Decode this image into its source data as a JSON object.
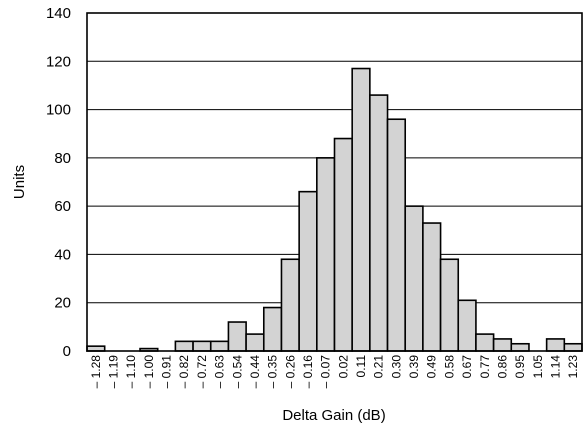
{
  "chart_data": {
    "type": "bar",
    "title": "",
    "xlabel": "Delta Gain (dB)",
    "ylabel": "Units",
    "ylim": [
      0,
      140
    ],
    "yticks": [
      "0",
      "20",
      "40",
      "60",
      "80",
      "100",
      "120",
      "140"
    ],
    "grid": "horizontal",
    "categories": [
      "-1.28",
      "-1.19",
      "-1.10",
      "-1.00",
      "-0.91",
      "-0.82",
      "-0.72",
      "-0.63",
      "-0.54",
      "-0.44",
      "-0.35",
      "-0.26",
      "-0.16",
      "-0.07",
      "0.02",
      "0.11",
      "0.21",
      "0.30",
      "0.39",
      "0.49",
      "0.58",
      "0.67",
      "0.77",
      "0.86",
      "0.95",
      "1.05",
      "1.14",
      "1.23"
    ],
    "tick_labels": [
      "– 1.28",
      "– 1.19",
      "– 1.10",
      "– 1.00",
      "– 0.91",
      "– 0.82",
      "– 0.72",
      "– 0.63",
      "– 0.54",
      "– 0.44",
      "– 0.35",
      "– 0.26",
      "– 0.16",
      "– 0.07",
      "0.02",
      "0.11",
      "0.21",
      "0.30",
      "0.39",
      "0.49",
      "0.58",
      "0.67",
      "0.77",
      "0.86",
      "0.95",
      "1.05",
      "1.14",
      "1.23"
    ],
    "values": [
      2,
      0,
      0,
      1,
      0,
      4,
      4,
      4,
      12,
      7,
      18,
      38,
      66,
      80,
      88,
      117,
      106,
      96,
      60,
      53,
      38,
      21,
      7,
      5,
      3,
      0,
      5,
      3
    ],
    "colors": {
      "bar_fill": "#d3d3d3",
      "bar_stroke": "#000000"
    }
  }
}
